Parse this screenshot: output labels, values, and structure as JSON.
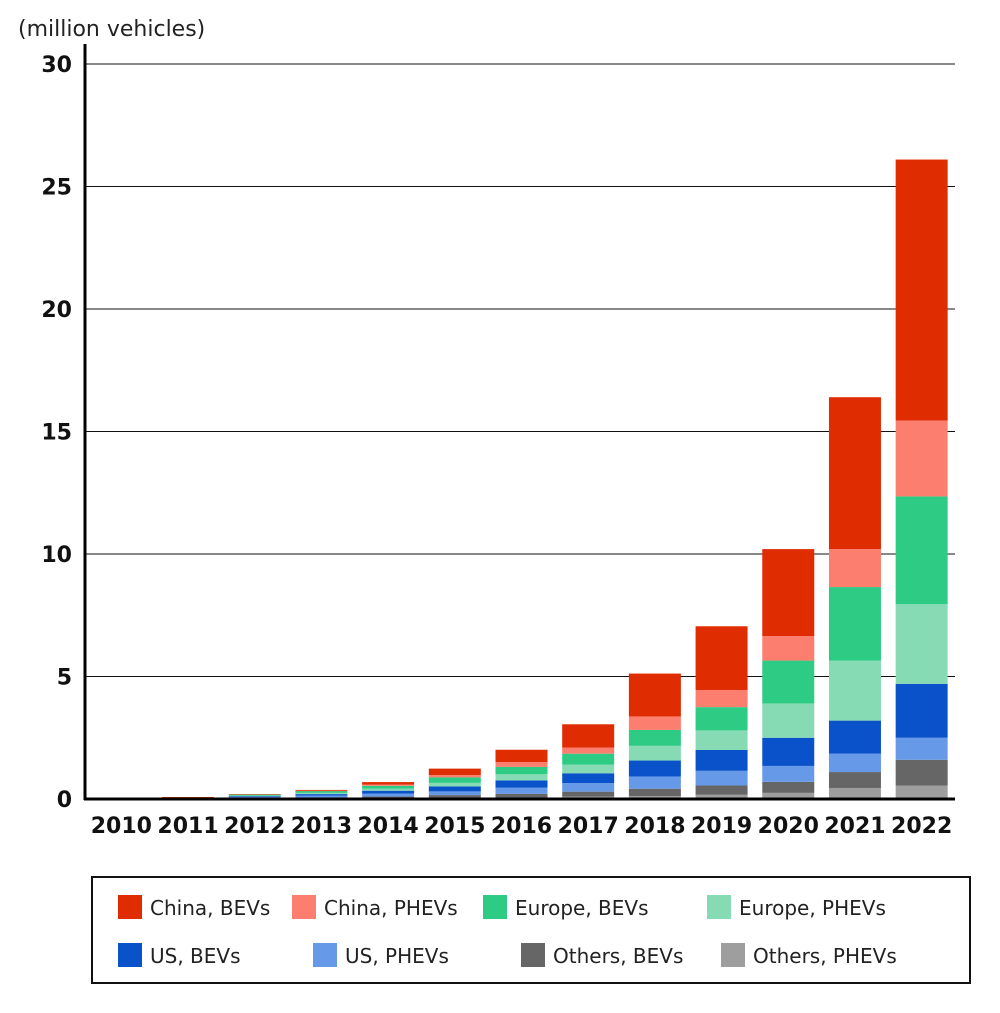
{
  "chart_data": {
    "type": "bar",
    "stacked": true,
    "unit_label": "(million vehicles)",
    "ylim": [
      0,
      30
    ],
    "yticks": [
      0,
      5,
      10,
      15,
      20,
      25,
      30
    ],
    "grid": true,
    "legend_position": "bottom",
    "categories": [
      "2010",
      "2011",
      "2012",
      "2013",
      "2014",
      "2015",
      "2016",
      "2017",
      "2018",
      "2019",
      "2020",
      "2021",
      "2022"
    ],
    "series": [
      {
        "name": "Others, PHEVs",
        "color": "#9e9e9e",
        "values": [
          0.0,
          0.0,
          0.01,
          0.01,
          0.02,
          0.04,
          0.06,
          0.1,
          0.12,
          0.17,
          0.25,
          0.45,
          0.55
        ]
      },
      {
        "name": "Others, BEVs",
        "color": "#666666",
        "values": [
          0.0,
          0.02,
          0.03,
          0.05,
          0.08,
          0.12,
          0.15,
          0.2,
          0.3,
          0.38,
          0.45,
          0.65,
          1.05
        ]
      },
      {
        "name": "US, PHEVs",
        "color": "#6699e8",
        "values": [
          0.0,
          0.01,
          0.05,
          0.08,
          0.12,
          0.15,
          0.25,
          0.35,
          0.5,
          0.6,
          0.65,
          0.75,
          0.9
        ]
      },
      {
        "name": "US, BEVs",
        "color": "#0a52c9",
        "values": [
          0.0,
          0.01,
          0.03,
          0.06,
          0.12,
          0.2,
          0.3,
          0.4,
          0.65,
          0.85,
          1.15,
          1.35,
          2.2
        ]
      },
      {
        "name": "Europe, PHEVs",
        "color": "#86dbb4",
        "values": [
          0.0,
          0.01,
          0.02,
          0.05,
          0.08,
          0.15,
          0.25,
          0.35,
          0.6,
          0.8,
          1.4,
          2.45,
          3.25
        ]
      },
      {
        "name": "Europe, BEVs",
        "color": "#2ecb85",
        "values": [
          0.0,
          0.02,
          0.04,
          0.08,
          0.12,
          0.22,
          0.3,
          0.45,
          0.65,
          0.95,
          1.75,
          3.0,
          4.4
        ]
      },
      {
        "name": "China, PHEVs",
        "color": "#fc7e6e",
        "values": [
          0.0,
          0.0,
          0.0,
          0.01,
          0.05,
          0.1,
          0.2,
          0.25,
          0.55,
          0.7,
          1.0,
          1.55,
          3.1
        ]
      },
      {
        "name": "China, BEVs",
        "color": "#df2c00",
        "values": [
          0.0,
          0.01,
          0.02,
          0.03,
          0.1,
          0.26,
          0.5,
          0.95,
          1.75,
          2.6,
          3.55,
          6.2,
          10.65
        ]
      }
    ],
    "legend_order": [
      "China, BEVs",
      "China, PHEVs",
      "Europe, BEVs",
      "Europe, PHEVs",
      "US, BEVs",
      "US, PHEVs",
      "Others, BEVs",
      "Others, PHEVs"
    ]
  }
}
